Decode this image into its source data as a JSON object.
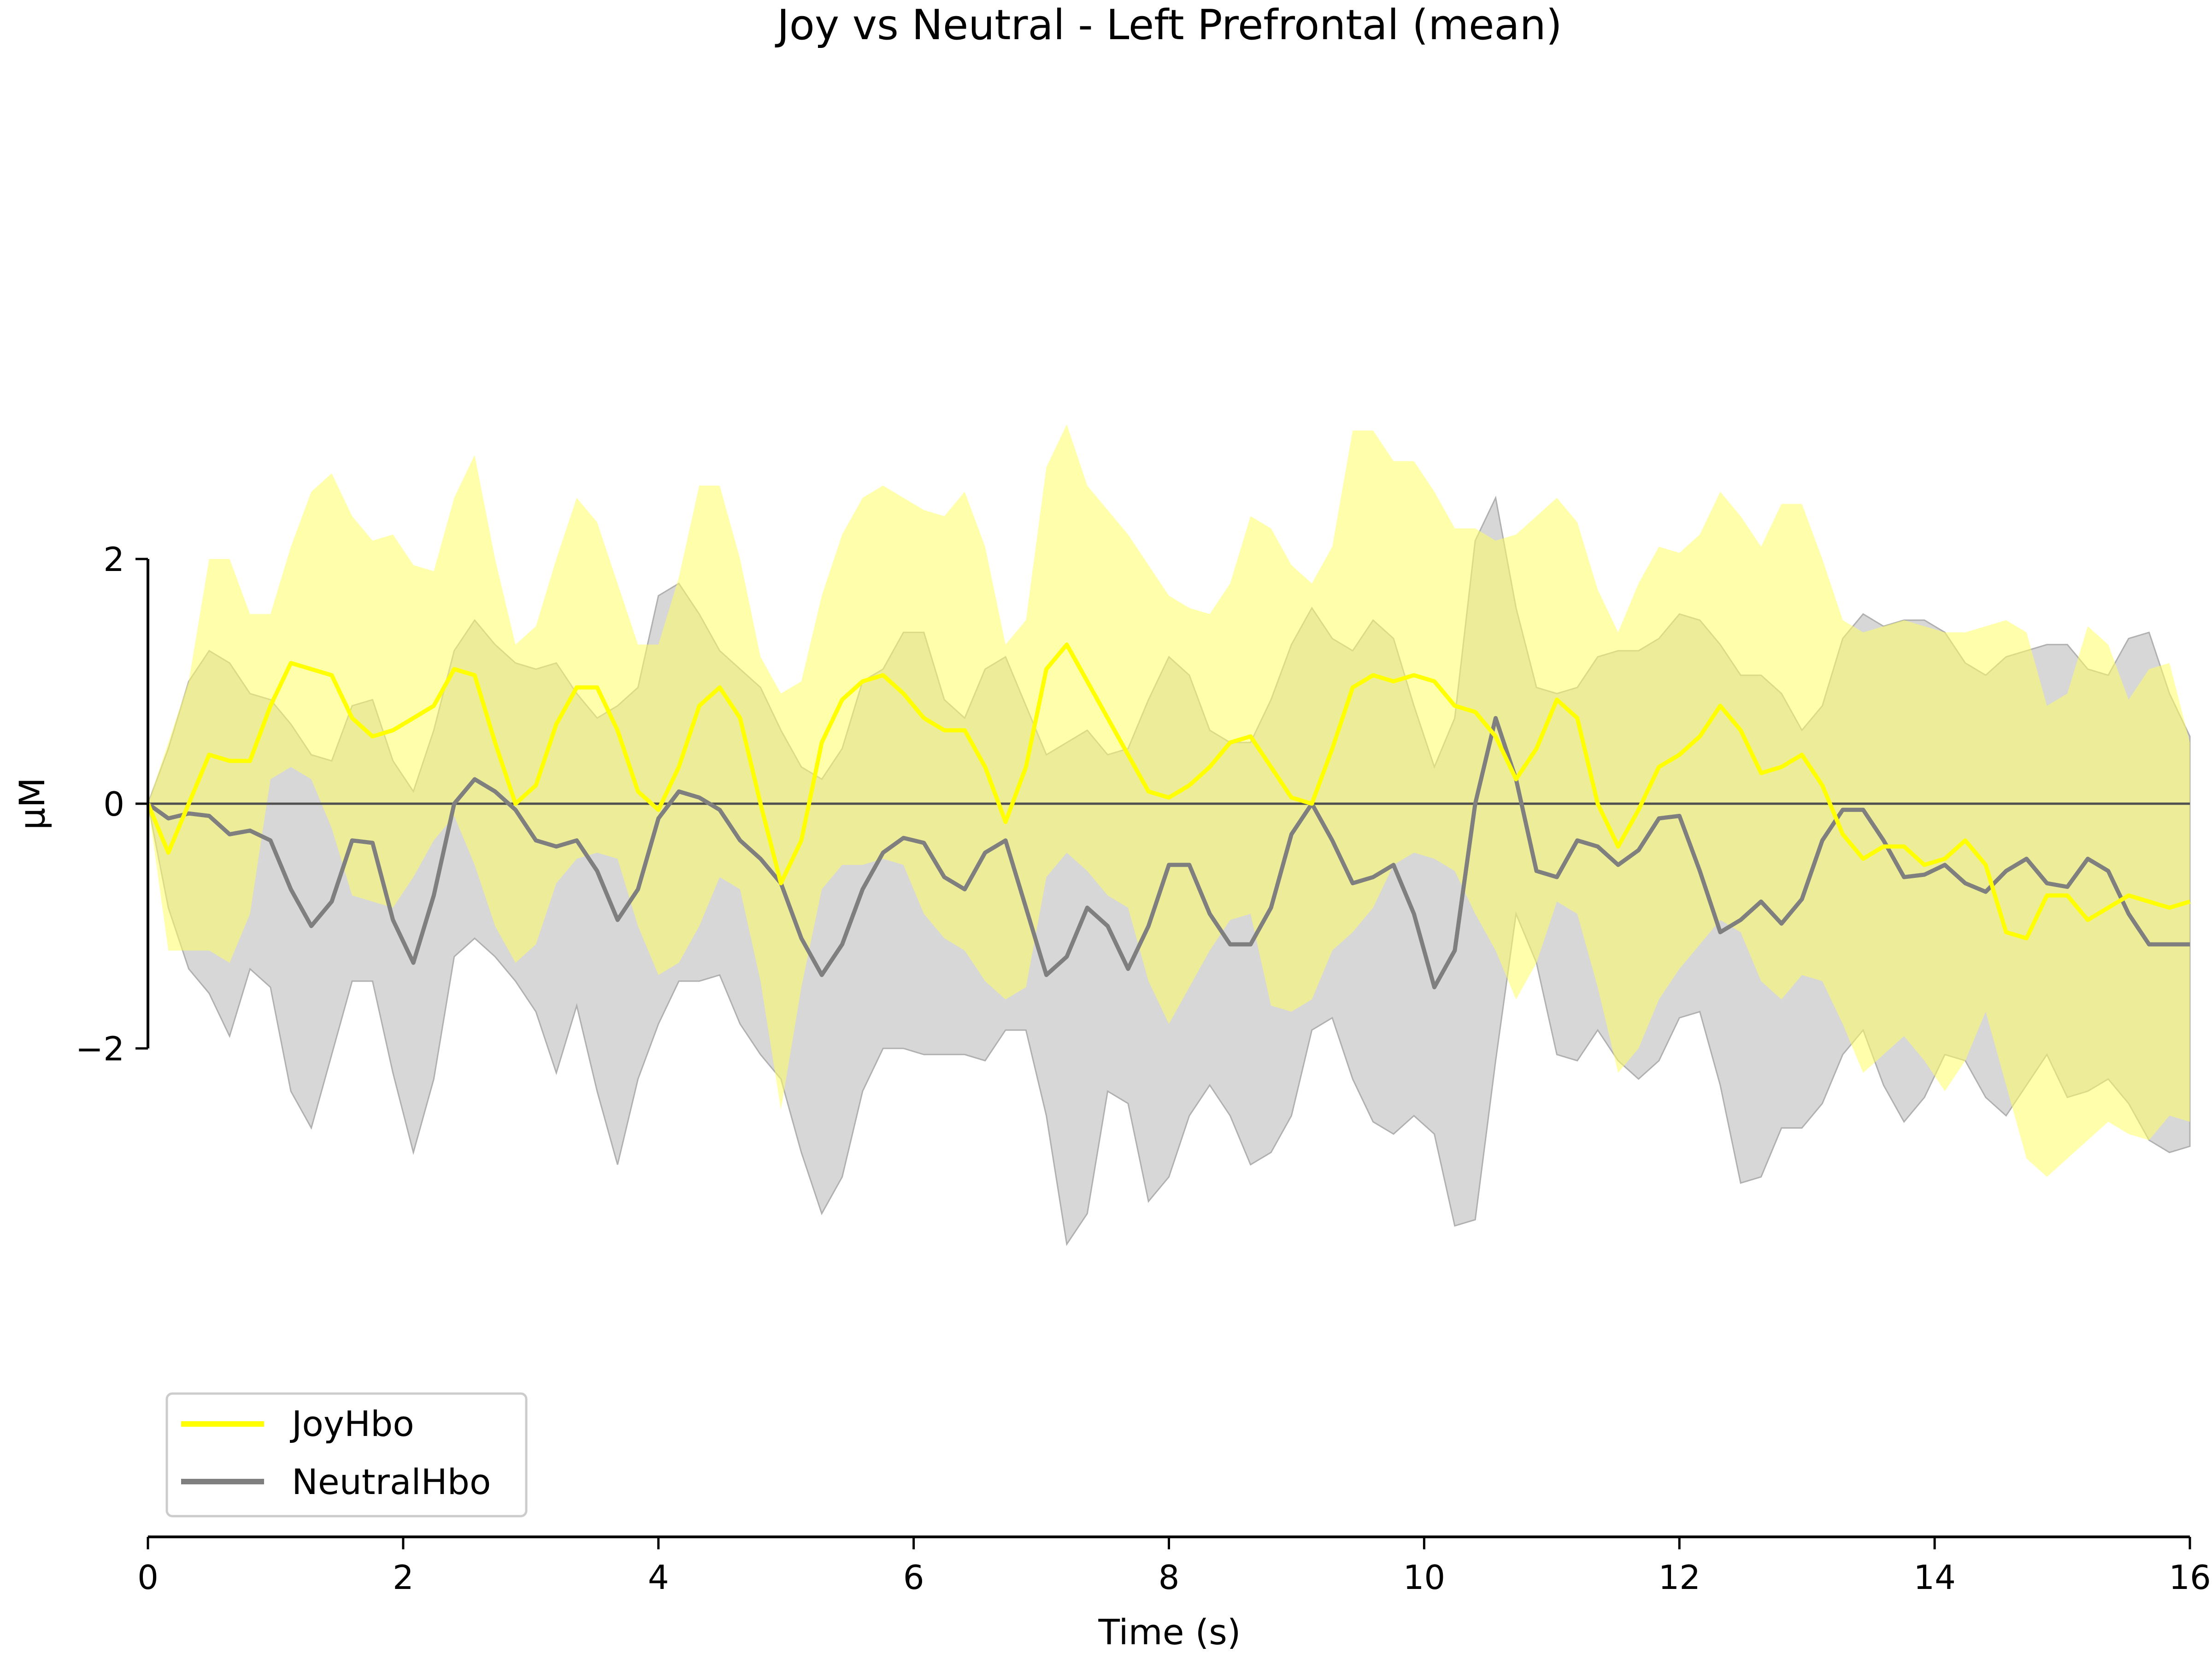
{
  "chart_data": {
    "type": "line",
    "title": "Joy vs Neutral - Left Prefrontal (mean)",
    "xlabel": "Time (s)",
    "ylabel": "µM",
    "xlim": [
      0,
      16
    ],
    "ylim": [
      -4.5,
      6
    ],
    "x_ticks": [
      "0",
      "2",
      "4",
      "6",
      "8",
      "10",
      "12",
      "14",
      "16"
    ],
    "y_ticks": [
      "−2",
      "0",
      "2"
    ],
    "zero_line": true,
    "grid": false,
    "legend_position": "lower-left",
    "x": [
      0,
      0.16,
      0.32,
      0.48,
      0.64,
      0.8,
      0.96,
      1.12,
      1.28,
      1.44,
      1.6,
      1.76,
      1.92,
      2.08,
      2.24,
      2.4,
      2.56,
      2.72,
      2.88,
      3.04,
      3.2,
      3.36,
      3.52,
      3.68,
      3.84,
      4,
      4.16,
      4.32,
      4.48,
      4.64,
      4.8,
      4.96,
      5.12,
      5.28,
      5.44,
      5.6,
      5.76,
      5.92,
      6.08,
      6.24,
      6.4,
      6.56,
      6.72,
      6.88,
      7.04,
      7.2,
      7.36,
      7.52,
      7.68,
      7.84,
      8,
      8.16,
      8.32,
      8.48,
      8.64,
      8.8,
      8.96,
      9.12,
      9.28,
      9.44,
      9.6,
      9.76,
      9.92,
      10.08,
      10.24,
      10.4,
      10.56,
      10.72,
      10.88,
      11.04,
      11.2,
      11.36,
      11.52,
      11.68,
      11.84,
      12,
      12.16,
      12.32,
      12.48,
      12.64,
      12.8,
      12.96,
      13.12,
      13.28,
      13.44,
      13.6,
      13.76,
      13.92,
      14.08,
      14.24,
      14.4,
      14.56,
      14.72,
      14.88,
      15.04,
      15.2,
      15.36,
      15.52,
      15.68,
      15.84,
      16
    ],
    "series": [
      {
        "name": "JoyHbo",
        "color": "#ffff00",
        "band_color": "#ffff66",
        "values": [
          0,
          -0.4,
          0,
          0.4,
          0.35,
          0.35,
          0.8,
          1.15,
          1.1,
          1.05,
          0.7,
          0.55,
          0.6,
          0.7,
          0.8,
          1.1,
          1.05,
          0.5,
          0,
          0.15,
          0.65,
          0.95,
          0.95,
          0.6,
          0.1,
          -0.05,
          0.3,
          0.8,
          0.95,
          0.7,
          0,
          -0.65,
          -0.3,
          0.5,
          0.85,
          1.0,
          1.05,
          0.9,
          0.7,
          0.6,
          0.6,
          0.3,
          -0.15,
          0.3,
          1.1,
          1.3,
          1.0,
          0.7,
          0.4,
          0.1,
          0.05,
          0.15,
          0.3,
          0.5,
          0.55,
          0.3,
          0.05,
          0.0,
          0.45,
          0.95,
          1.05,
          1.0,
          1.05,
          1.0,
          0.8,
          0.75,
          0.55,
          0.2,
          0.45,
          0.85,
          0.7,
          0,
          -0.35,
          -0.05,
          0.3,
          0.4,
          0.55,
          0.8,
          0.6,
          0.25,
          0.3,
          0.4,
          0.15,
          -0.25,
          -0.45,
          -0.35,
          -0.35,
          -0.5,
          -0.45,
          -0.3,
          -0.5,
          -1.05,
          -1.1,
          -0.75,
          -0.75,
          -0.95,
          -0.85,
          -0.75,
          -0.8,
          -0.85,
          -0.8
        ],
        "upper": [
          0,
          0.5,
          1.0,
          2.0,
          2.0,
          1.55,
          1.55,
          2.1,
          2.55,
          2.7,
          2.35,
          2.15,
          2.2,
          1.95,
          1.9,
          2.5,
          2.85,
          2.0,
          1.3,
          1.45,
          2.0,
          2.5,
          2.3,
          1.8,
          1.3,
          1.3,
          1.85,
          2.6,
          2.6,
          2.0,
          1.2,
          0.9,
          1.0,
          1.7,
          2.2,
          2.5,
          2.6,
          2.5,
          2.4,
          2.35,
          2.55,
          2.1,
          1.3,
          1.5,
          2.75,
          3.1,
          2.6,
          2.4,
          2.2,
          1.95,
          1.7,
          1.6,
          1.55,
          1.8,
          2.35,
          2.25,
          1.95,
          1.8,
          2.1,
          3.05,
          3.05,
          2.8,
          2.8,
          2.55,
          2.25,
          2.25,
          2.15,
          2.2,
          2.35,
          2.5,
          2.3,
          1.75,
          1.4,
          1.8,
          2.1,
          2.05,
          2.2,
          2.55,
          2.35,
          2.1,
          2.45,
          2.45,
          2.0,
          1.5,
          1.4,
          1.45,
          1.5,
          1.45,
          1.4,
          1.4,
          1.45,
          1.5,
          1.4,
          0.8,
          0.9,
          1.45,
          1.3,
          0.85,
          1.1,
          1.15,
          0.5
        ],
        "lower": [
          0,
          -1.2,
          -1.2,
          -1.2,
          -1.3,
          -0.9,
          0.2,
          0.3,
          0.2,
          -0.2,
          -0.75,
          -0.8,
          -0.85,
          -0.6,
          -0.3,
          -0.1,
          -0.5,
          -1.0,
          -1.3,
          -1.15,
          -0.65,
          -0.45,
          -0.4,
          -0.45,
          -1.0,
          -1.4,
          -1.3,
          -1.0,
          -0.6,
          -0.7,
          -1.45,
          -2.5,
          -1.5,
          -0.7,
          -0.5,
          -0.5,
          -0.45,
          -0.5,
          -0.9,
          -1.1,
          -1.2,
          -1.45,
          -1.6,
          -1.5,
          -0.6,
          -0.4,
          -0.55,
          -0.75,
          -0.85,
          -1.45,
          -1.8,
          -1.5,
          -1.2,
          -0.95,
          -0.9,
          -1.65,
          -1.7,
          -1.6,
          -1.2,
          -1.05,
          -0.85,
          -0.5,
          -0.4,
          -0.45,
          -0.55,
          -0.9,
          -1.2,
          -1.6,
          -1.3,
          -0.8,
          -0.9,
          -1.5,
          -2.2,
          -2.0,
          -1.6,
          -1.35,
          -1.15,
          -0.95,
          -1.05,
          -1.45,
          -1.6,
          -1.4,
          -1.45,
          -1.8,
          -2.2,
          -2.05,
          -1.9,
          -2.1,
          -2.35,
          -2.1,
          -1.7,
          -2.3,
          -2.9,
          -3.05,
          -2.9,
          -2.75,
          -2.6,
          -2.7,
          -2.75,
          -2.55,
          -2.6
        ]
      },
      {
        "name": "NeutralHbo",
        "color": "#7f7f7f",
        "band_color": "#d3d3d3",
        "values": [
          0,
          -0.12,
          -0.08,
          -0.1,
          -0.25,
          -0.22,
          -0.3,
          -0.7,
          -1.0,
          -0.8,
          -0.3,
          -0.32,
          -0.95,
          -1.3,
          -0.75,
          0,
          0.2,
          0.1,
          -0.05,
          -0.3,
          -0.35,
          -0.3,
          -0.55,
          -0.95,
          -0.7,
          -0.12,
          0.1,
          0.05,
          -0.05,
          -0.3,
          -0.45,
          -0.65,
          -1.1,
          -1.4,
          -1.15,
          -0.7,
          -0.4,
          -0.28,
          -0.32,
          -0.6,
          -0.7,
          -0.4,
          -0.3,
          -0.85,
          -1.4,
          -1.25,
          -0.85,
          -1.0,
          -1.35,
          -1.0,
          -0.5,
          -0.5,
          -0.9,
          -1.15,
          -1.15,
          -0.85,
          -0.25,
          0.0,
          -0.3,
          -0.65,
          -0.6,
          -0.5,
          -0.9,
          -1.5,
          -1.2,
          0.0,
          0.7,
          0.2,
          -0.55,
          -0.6,
          -0.3,
          -0.35,
          -0.5,
          -0.38,
          -0.12,
          -0.1,
          -0.55,
          -1.05,
          -0.95,
          -0.8,
          -0.98,
          -0.78,
          -0.3,
          -0.05,
          -0.05,
          -0.3,
          -0.6,
          -0.58,
          -0.5,
          -0.65,
          -0.72,
          -0.55,
          -0.45,
          -0.65,
          -0.68,
          -0.45,
          -0.55,
          -0.9,
          -1.15,
          -1.15,
          -1.15
        ]
      }
    ],
    "neutral_band": {
      "upper": [
        0,
        0.45,
        1.0,
        1.25,
        1.15,
        0.9,
        0.85,
        0.65,
        0.4,
        0.35,
        0.8,
        0.85,
        0.35,
        0.1,
        0.6,
        1.25,
        1.5,
        1.3,
        1.15,
        1.1,
        1.15,
        0.9,
        0.7,
        0.8,
        0.95,
        1.7,
        1.8,
        1.55,
        1.25,
        1.1,
        0.95,
        0.6,
        0.3,
        0.2,
        0.45,
        1.0,
        1.1,
        1.4,
        1.4,
        0.85,
        0.7,
        1.1,
        1.2,
        0.8,
        0.4,
        0.5,
        0.6,
        0.4,
        0.45,
        0.85,
        1.2,
        1.05,
        0.6,
        0.5,
        0.5,
        0.85,
        1.3,
        1.6,
        1.35,
        1.25,
        1.5,
        1.35,
        0.8,
        0.3,
        0.7,
        2.15,
        2.5,
        1.6,
        0.95,
        0.9,
        0.95,
        1.2,
        1.25,
        1.25,
        1.35,
        1.55,
        1.5,
        1.3,
        1.05,
        1.05,
        0.9,
        0.6,
        0.8,
        1.35,
        1.55,
        1.45,
        1.5,
        1.5,
        1.4,
        1.15,
        1.05,
        1.2,
        1.25,
        1.3,
        1.3,
        1.1,
        1.05,
        1.35,
        1.4,
        0.9,
        0.55
      ],
      "lower": [
        0,
        -0.85,
        -1.35,
        -1.55,
        -1.9,
        -1.35,
        -1.5,
        -2.35,
        -2.65,
        -2.05,
        -1.45,
        -1.45,
        -2.2,
        -2.85,
        -2.25,
        -1.25,
        -1.1,
        -1.25,
        -1.45,
        -1.7,
        -2.2,
        -1.65,
        -2.35,
        -2.95,
        -2.25,
        -1.8,
        -1.45,
        -1.45,
        -1.4,
        -1.8,
        -2.05,
        -2.25,
        -2.85,
        -3.35,
        -3.05,
        -2.35,
        -2.0,
        -2.0,
        -2.05,
        -2.05,
        -2.05,
        -2.1,
        -1.85,
        -1.85,
        -2.55,
        -3.6,
        -3.35,
        -2.35,
        -2.45,
        -3.25,
        -3.05,
        -2.55,
        -2.3,
        -2.55,
        -2.95,
        -2.85,
        -2.55,
        -1.85,
        -1.75,
        -2.25,
        -2.6,
        -2.7,
        -2.55,
        -2.7,
        -3.45,
        -3.4,
        -2.1,
        -0.9,
        -1.3,
        -2.05,
        -2.1,
        -1.85,
        -2.1,
        -2.25,
        -2.1,
        -1.75,
        -1.7,
        -2.3,
        -3.1,
        -3.05,
        -2.65,
        -2.65,
        -2.45,
        -2.05,
        -1.85,
        -2.3,
        -2.6,
        -2.4,
        -2.05,
        -2.1,
        -2.4,
        -2.55,
        -2.3,
        -2.05,
        -2.4,
        -2.35,
        -2.25,
        -2.45,
        -2.75,
        -2.85,
        -2.8
      ]
    }
  }
}
